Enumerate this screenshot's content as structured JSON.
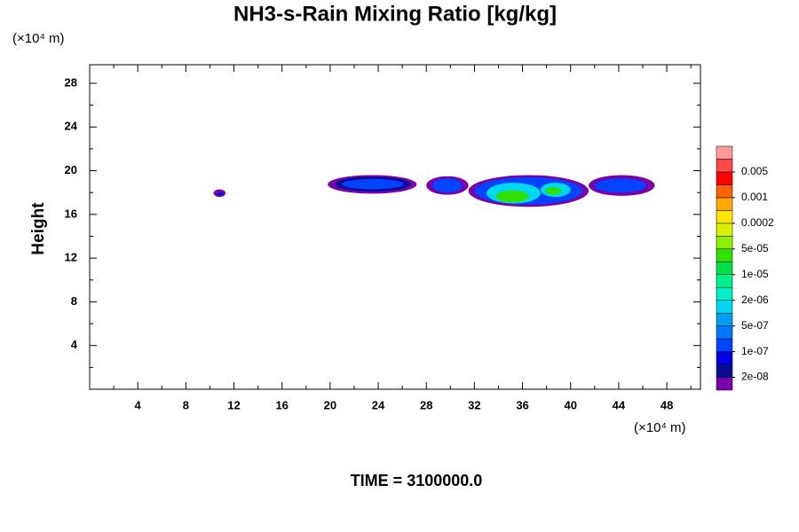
{
  "chart_data": {
    "type": "contour",
    "title": "NH3-s-Rain Mixing Ratio [kg/kg]",
    "y_unit": "(×10⁴ m)",
    "x_unit": "(×10⁴ m)",
    "y_label": "Height",
    "footer": "TIME = 3100000.0",
    "xlim": [
      0,
      50.8
    ],
    "ylim": [
      0,
      29.7
    ],
    "xticks": [
      4,
      8,
      12,
      16,
      20,
      24,
      28,
      32,
      36,
      40,
      44,
      48
    ],
    "yticks": [
      4,
      8,
      12,
      16,
      20,
      24,
      28
    ],
    "xminorticks": [
      2,
      6,
      10,
      14,
      18,
      22,
      26,
      30,
      34,
      38,
      42,
      46,
      50
    ],
    "yminorticks": [
      2,
      6,
      10,
      14,
      18,
      22,
      26
    ],
    "colorbar": {
      "colors": [
        "#7a00aa",
        "#0a0a96",
        "#0000e6",
        "#0044ff",
        "#0078ff",
        "#00a0f0",
        "#00d8f0",
        "#00f0c8",
        "#00f08c",
        "#00e048",
        "#30e000",
        "#90f000",
        "#d8f000",
        "#ffe600",
        "#ffa800",
        "#ff6000",
        "#ff0000",
        "#ff4848",
        "#ff9898"
      ],
      "ticks": [
        {
          "value": 2e-08,
          "label": "2e-08"
        },
        {
          "value": 1e-07,
          "label": "1e-07"
        },
        {
          "value": 5e-07,
          "label": "5e-07"
        },
        {
          "value": 2e-06,
          "label": "2e-06"
        },
        {
          "value": 1e-05,
          "label": "1e-05"
        },
        {
          "value": 5e-05,
          "label": "5e-05"
        },
        {
          "value": 0.0002,
          "label": "0.0002"
        },
        {
          "value": 0.001,
          "label": "0.001"
        },
        {
          "value": 0.005,
          "label": "0.005"
        }
      ]
    },
    "patches": [
      {
        "x": [
          10.3,
          11.3
        ],
        "y": [
          17.6,
          18.3
        ],
        "color": "#7a00aa"
      },
      {
        "x": [
          10.6,
          11.1
        ],
        "y": [
          17.7,
          18.0
        ],
        "color": "#0000e6"
      },
      {
        "x": [
          19.8,
          27.2
        ],
        "y": [
          17.9,
          19.6
        ],
        "color": "#7a00aa"
      },
      {
        "x": [
          20.4,
          26.7
        ],
        "y": [
          18.1,
          19.45
        ],
        "color": "#0a0a96"
      },
      {
        "x": [
          21.0,
          26.1
        ],
        "y": [
          18.3,
          19.25
        ],
        "color": "#0044ff"
      },
      {
        "x": [
          28.0,
          31.5
        ],
        "y": [
          17.8,
          19.5
        ],
        "color": "#7a00aa"
      },
      {
        "x": [
          28.5,
          31.0
        ],
        "y": [
          18.0,
          19.3
        ],
        "color": "#0044ff"
      },
      {
        "x": [
          31.5,
          41.5
        ],
        "y": [
          16.7,
          19.6
        ],
        "color": "#7a00aa"
      },
      {
        "x": [
          32.0,
          41.0
        ],
        "y": [
          16.9,
          19.4
        ],
        "color": "#0044ff"
      },
      {
        "x": [
          33.0,
          37.5
        ],
        "y": [
          17.0,
          18.9
        ],
        "color": "#00d8f0"
      },
      {
        "x": [
          33.8,
          36.5
        ],
        "y": [
          17.1,
          18.2
        ],
        "color": "#30e000"
      },
      {
        "x": [
          37.5,
          40.0
        ],
        "y": [
          17.6,
          18.9
        ],
        "color": "#00d8f0"
      },
      {
        "x": [
          37.9,
          39.2
        ],
        "y": [
          17.8,
          18.5
        ],
        "color": "#30e000"
      },
      {
        "x": [
          41.5,
          47.0
        ],
        "y": [
          17.7,
          19.6
        ],
        "color": "#7a00aa"
      },
      {
        "x": [
          42.0,
          46.3
        ],
        "y": [
          18.0,
          19.3
        ],
        "color": "#0044ff"
      }
    ]
  }
}
